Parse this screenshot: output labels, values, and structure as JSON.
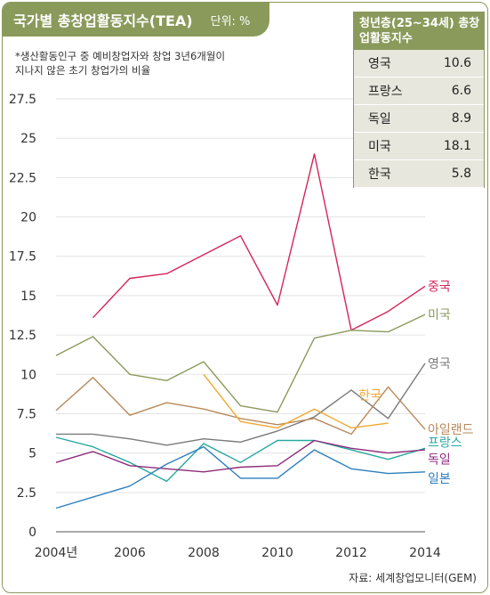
{
  "header": {
    "title": "국가별 총창업활동지수(TEA)",
    "unit": "단위: %"
  },
  "note": "*생산활동인구 중 예비창업자와 창업 3년6개월이\n지나지 않은 초기 창업가의 비율",
  "table": {
    "title": "청년층(25~34세) 총창업활동지수",
    "rows": [
      {
        "country": "영국",
        "value": "10.6"
      },
      {
        "country": "프랑스",
        "value": "6.6"
      },
      {
        "country": "독일",
        "value": "8.9"
      },
      {
        "country": "미국",
        "value": "18.1"
      },
      {
        "country": "한국",
        "value": "5.8"
      }
    ]
  },
  "source": "자료: 세계창업모니터(GEM)",
  "colors": {
    "frame": "#8a9a5b",
    "china": "#d6245a",
    "usa": "#8a9a5b",
    "uk": "#7a7a7a",
    "ireland": "#b8895a",
    "korea": "#f0a830",
    "france": "#27a9a0",
    "germany": "#8e2b7a",
    "japan": "#2d7fbd"
  },
  "chart_data": {
    "type": "line",
    "x": [
      2004,
      2005,
      2006,
      2007,
      2008,
      2009,
      2010,
      2011,
      2012,
      2013,
      2014
    ],
    "ylim": [
      0,
      27.5
    ],
    "yticks": [
      "0",
      "2.5",
      "5",
      "7.5",
      "10",
      "12.5",
      "15",
      "17.5",
      "20",
      "22.5",
      "25",
      "27.5"
    ],
    "xticks": [
      "2004년",
      "2006",
      "2008",
      "2010",
      "2012",
      "2014"
    ],
    "series": [
      {
        "name": "중국",
        "color": "#d6245a",
        "values": [
          null,
          13.6,
          16.1,
          16.4,
          17.6,
          18.8,
          14.4,
          24.0,
          12.8,
          14.0,
          15.6
        ]
      },
      {
        "name": "미국",
        "color": "#8a9a5b",
        "values": [
          11.2,
          12.4,
          10.0,
          9.6,
          10.8,
          8.0,
          7.6,
          12.3,
          12.8,
          12.7,
          13.8
        ]
      },
      {
        "name": "영국",
        "color": "#7a7a7a",
        "values": [
          6.2,
          6.2,
          5.9,
          5.5,
          5.9,
          5.7,
          6.4,
          7.3,
          9.0,
          7.2,
          10.7
        ]
      },
      {
        "name": "아일랜드",
        "color": "#b8895a",
        "values": [
          7.7,
          9.8,
          7.4,
          8.2,
          7.8,
          7.2,
          6.8,
          7.2,
          6.2,
          9.2,
          6.5
        ]
      },
      {
        "name": "한국",
        "color": "#f0a830",
        "values": [
          null,
          null,
          null,
          null,
          10.0,
          7.0,
          6.6,
          7.8,
          6.6,
          6.9,
          null
        ]
      },
      {
        "name": "프랑스",
        "color": "#27a9a0",
        "values": [
          6.0,
          5.4,
          4.4,
          3.2,
          5.6,
          4.4,
          5.8,
          5.8,
          5.2,
          4.6,
          5.3
        ]
      },
      {
        "name": "독일",
        "color": "#8e2b7a",
        "values": [
          4.4,
          5.1,
          4.2,
          4.0,
          3.8,
          4.1,
          4.2,
          5.8,
          5.3,
          5.0,
          5.2
        ]
      },
      {
        "name": "일본",
        "color": "#2d7fbd",
        "values": [
          1.5,
          2.2,
          2.9,
          4.3,
          5.4,
          3.4,
          3.4,
          5.2,
          4.0,
          3.7,
          3.8
        ]
      }
    ],
    "end_labels": [
      {
        "name": "중국",
        "color": "#d6245a",
        "y": 15.6
      },
      {
        "name": "미국",
        "color": "#8a9a5b",
        "y": 13.8
      },
      {
        "name": "영국",
        "color": "#7a7a7a",
        "y": 10.7
      },
      {
        "name": "아일랜드",
        "color": "#b8895a",
        "y": 6.5
      },
      {
        "name": "프랑스",
        "color": "#27a9a0",
        "y": 5.7
      },
      {
        "name": "독일",
        "color": "#8e2b7a",
        "y": 4.6
      },
      {
        "name": "일본",
        "color": "#2d7fbd",
        "y": 3.4
      }
    ],
    "korea_label": {
      "name": "한국",
      "color": "#f0a830",
      "x": 2012.2,
      "y": 8.4
    }
  }
}
